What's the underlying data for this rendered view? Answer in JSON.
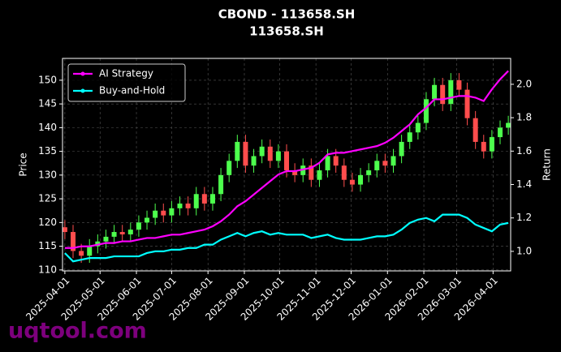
{
  "chart_data": {
    "type": "candlestick",
    "title": "CBOND - 113658.SH",
    "subtitle": "113658.SH",
    "ylabel": "Price",
    "y2label": "Return",
    "watermark": "uqtool.com",
    "x": [
      "2025-04-01",
      "2025-04-08",
      "2025-04-15",
      "2025-04-22",
      "2025-04-29",
      "2025-05-06",
      "2025-05-13",
      "2025-05-20",
      "2025-05-27",
      "2025-06-03",
      "2025-06-10",
      "2025-06-17",
      "2025-06-24",
      "2025-07-01",
      "2025-07-08",
      "2025-07-15",
      "2025-07-22",
      "2025-07-29",
      "2025-08-05",
      "2025-08-12",
      "2025-08-19",
      "2025-08-26",
      "2025-09-02",
      "2025-09-09",
      "2025-09-16",
      "2025-09-23",
      "2025-09-30",
      "2025-10-07",
      "2025-10-14",
      "2025-10-21",
      "2025-10-28",
      "2025-11-04",
      "2025-11-11",
      "2025-11-18",
      "2025-11-25",
      "2025-12-02",
      "2025-12-09",
      "2025-12-16",
      "2025-12-23",
      "2025-12-30",
      "2026-01-06",
      "2026-01-13",
      "2026-01-20",
      "2026-01-27",
      "2026-02-03",
      "2026-02-10",
      "2026-02-17",
      "2026-02-24",
      "2026-03-03",
      "2026-03-10",
      "2026-03-17",
      "2026-03-24",
      "2026-03-31",
      "2026-04-07",
      "2026-04-14"
    ],
    "candles": {
      "open": [
        119,
        118,
        114,
        113,
        115,
        116,
        117,
        118,
        117.5,
        118.5,
        120,
        121,
        122.5,
        121.5,
        123,
        124,
        123,
        126,
        124,
        126,
        130,
        133,
        137,
        132,
        134,
        136,
        133,
        135,
        131,
        130,
        132,
        129,
        131,
        134,
        132,
        129,
        128,
        130,
        131,
        133,
        132,
        134,
        137,
        139,
        141,
        146,
        149,
        145,
        150,
        148,
        142,
        137,
        135,
        138,
        140
      ],
      "high": [
        120.5,
        119.5,
        115.5,
        116.5,
        117.5,
        118.5,
        119.5,
        119.5,
        120,
        121.5,
        122.5,
        124,
        124,
        124.5,
        125.5,
        125.5,
        127.5,
        127.5,
        127.5,
        131.5,
        134.5,
        138.5,
        138.5,
        135.5,
        137.5,
        137.5,
        136.5,
        136.5,
        132.5,
        133.5,
        133.5,
        132.5,
        135.5,
        135.5,
        133.5,
        130.5,
        131.5,
        132.5,
        134.5,
        134.5,
        135.5,
        138.5,
        140.5,
        142.5,
        147.5,
        150.5,
        150.5,
        151.5,
        151.5,
        149.5,
        143.5,
        138.5,
        139.5,
        141.5,
        142.5
      ],
      "low": [
        116.5,
        112.5,
        111.5,
        111.5,
        113.5,
        114.5,
        115.5,
        116,
        116,
        117,
        118.5,
        119.5,
        120,
        120,
        121.5,
        121.5,
        121.5,
        122.5,
        122.5,
        124.5,
        128.5,
        131.5,
        130.5,
        130.5,
        132.5,
        131.5,
        131.5,
        129.5,
        128.5,
        128.5,
        127.5,
        127.5,
        129.5,
        130.5,
        127.5,
        126.5,
        126.5,
        128.5,
        129.5,
        130.5,
        130.5,
        132.5,
        135.5,
        137.5,
        139.5,
        144.5,
        143.5,
        143.5,
        146.5,
        140.5,
        135.5,
        133.5,
        133.5,
        136.5,
        138.5
      ],
      "close": [
        118,
        114,
        113,
        115,
        116,
        117,
        118,
        117.5,
        118.5,
        120,
        121,
        122.5,
        121.5,
        123,
        124,
        123,
        126,
        124,
        126,
        130,
        133,
        137,
        132,
        134,
        136,
        133,
        135,
        131,
        130,
        132,
        129,
        131,
        134,
        132,
        129,
        128,
        130,
        131,
        133,
        132,
        134,
        137,
        139,
        141,
        146,
        149,
        145,
        150,
        148,
        142,
        137,
        135,
        138,
        140,
        141
      ],
      "up_color": "#4dff4d",
      "down_color": "#ff4d4d"
    },
    "series": [
      {
        "name": "AI Strategy",
        "color": "#ff00ff",
        "axis": "y2",
        "values": [
          1.02,
          1.02,
          1.03,
          1.03,
          1.04,
          1.05,
          1.05,
          1.06,
          1.06,
          1.07,
          1.08,
          1.08,
          1.09,
          1.1,
          1.1,
          1.11,
          1.12,
          1.13,
          1.15,
          1.18,
          1.22,
          1.27,
          1.3,
          1.34,
          1.38,
          1.42,
          1.46,
          1.48,
          1.48,
          1.49,
          1.5,
          1.53,
          1.58,
          1.59,
          1.59,
          1.6,
          1.61,
          1.62,
          1.63,
          1.65,
          1.68,
          1.72,
          1.76,
          1.82,
          1.86,
          1.91,
          1.91,
          1.92,
          1.93,
          1.93,
          1.92,
          1.9,
          1.97,
          2.03,
          2.08
        ]
      },
      {
        "name": "Buy-and-Hold",
        "color": "#00ffff",
        "axis": "y2",
        "values": [
          0.99,
          0.94,
          0.95,
          0.96,
          0.96,
          0.96,
          0.97,
          0.97,
          0.97,
          0.97,
          0.99,
          1.0,
          1.0,
          1.01,
          1.01,
          1.02,
          1.02,
          1.04,
          1.04,
          1.07,
          1.09,
          1.11,
          1.09,
          1.11,
          1.12,
          1.1,
          1.11,
          1.1,
          1.1,
          1.1,
          1.08,
          1.09,
          1.1,
          1.08,
          1.07,
          1.07,
          1.07,
          1.08,
          1.09,
          1.09,
          1.1,
          1.13,
          1.17,
          1.19,
          1.2,
          1.18,
          1.22,
          1.22,
          1.22,
          1.2,
          1.16,
          1.14,
          1.12,
          1.16,
          1.17
        ]
      }
    ],
    "xlim": [
      "2025-03-30",
      "2026-04-16"
    ],
    "xticks": [
      "2025-04-01",
      "2025-05-01",
      "2025-06-01",
      "2025-07-01",
      "2025-08-01",
      "2025-09-01",
      "2025-10-01",
      "2025-11-01",
      "2025-12-01",
      "2026-01-01",
      "2026-02-01",
      "2026-03-01",
      "2026-04-01"
    ],
    "ylim": [
      109.8,
      154.6
    ],
    "yticks": [
      110,
      115,
      120,
      125,
      130,
      135,
      140,
      145,
      150
    ],
    "y2lim": [
      0.883,
      2.155
    ],
    "y2ticks": [
      {
        "value": 1,
        "label": "1.0"
      },
      1.2,
      1.4,
      1.6,
      1.8,
      {
        "value": 2,
        "label": "2.0"
      }
    ],
    "grid": true,
    "legend": "upper left"
  }
}
